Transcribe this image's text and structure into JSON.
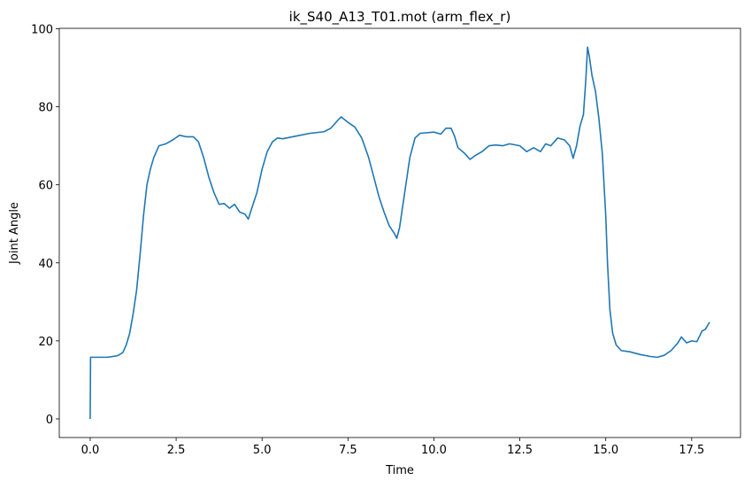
{
  "chart_data": {
    "type": "line",
    "title": "ik_S40_A13_T01.mot (arm_flex_r)",
    "x_label": "Time",
    "y_label": "Joint Angle",
    "x": [
      0,
      0.01,
      0.5,
      0.8,
      0.95,
      1.05,
      1.15,
      1.25,
      1.35,
      1.45,
      1.55,
      1.65,
      1.75,
      1.85,
      2.0,
      2.2,
      2.4,
      2.6,
      2.8,
      3.0,
      3.15,
      3.3,
      3.45,
      3.6,
      3.75,
      3.9,
      4.05,
      4.2,
      4.35,
      4.5,
      4.6,
      4.7,
      4.85,
      5.0,
      5.15,
      5.3,
      5.45,
      5.6,
      6.0,
      6.4,
      6.8,
      7.0,
      7.2,
      7.3,
      7.5,
      7.7,
      7.9,
      8.1,
      8.25,
      8.4,
      8.55,
      8.7,
      8.85,
      8.92,
      9.0,
      9.15,
      9.3,
      9.45,
      9.6,
      10.0,
      10.2,
      10.35,
      10.5,
      10.6,
      10.7,
      10.9,
      11.05,
      11.2,
      11.4,
      11.6,
      11.8,
      12.0,
      12.2,
      12.5,
      12.7,
      12.9,
      13.1,
      13.25,
      13.4,
      13.6,
      13.8,
      13.95,
      14.05,
      14.15,
      14.25,
      14.35,
      14.42,
      14.47,
      14.52,
      14.6,
      14.7,
      14.8,
      14.9,
      15.0,
      15.05,
      15.12,
      15.2,
      15.3,
      15.45,
      15.7,
      16.0,
      16.3,
      16.5,
      16.7,
      16.9,
      17.1,
      17.2,
      17.35,
      17.5,
      17.65,
      17.8,
      17.9,
      18.02
    ],
    "series": [
      {
        "name": "arm_flex_r",
        "color": "#1f77b4",
        "values": [
          0,
          15.8,
          15.8,
          16.2,
          17,
          19,
          22,
          27,
          33,
          42,
          52,
          60,
          64,
          67,
          70,
          70.5,
          71.5,
          72.7,
          72.3,
          72.3,
          71,
          67,
          62,
          58,
          55,
          55.2,
          54,
          55,
          53,
          52.5,
          51.2,
          54,
          58,
          64,
          68.5,
          71,
          72,
          71.8,
          72.5,
          73.2,
          73.6,
          74.5,
          76.5,
          77.4,
          76,
          74.8,
          72,
          67,
          62,
          57,
          53,
          49.5,
          47.5,
          46.3,
          49,
          58,
          67,
          72,
          73.2,
          73.5,
          73,
          74.5,
          74.5,
          72.5,
          69.5,
          68,
          66.5,
          67.5,
          68.5,
          70,
          70.2,
          70,
          70.5,
          70,
          68.5,
          69.5,
          68.5,
          70.5,
          70,
          72,
          71.5,
          70,
          66.8,
          70,
          75,
          78,
          87,
          95.3,
          93,
          88,
          84,
          77,
          68,
          52,
          40,
          28,
          22,
          19,
          17.5,
          17.2,
          16.5,
          16,
          15.8,
          16.3,
          17.5,
          19.5,
          21,
          19.5,
          20,
          19.8,
          22.5,
          23,
          24.8
        ]
      }
    ],
    "xlim": [
      -0.9,
      18.92
    ],
    "ylim": [
      -4.77,
      100.1
    ],
    "xticks": [
      {
        "value": 0,
        "label": "0.0"
      },
      2.5,
      {
        "value": 5,
        "label": "5.0"
      },
      7.5,
      {
        "value": 10,
        "label": "10.0"
      },
      12.5,
      {
        "value": 15,
        "label": "15.0"
      },
      17.5
    ],
    "yticks": [
      0,
      20,
      40,
      60,
      80,
      100
    ]
  }
}
